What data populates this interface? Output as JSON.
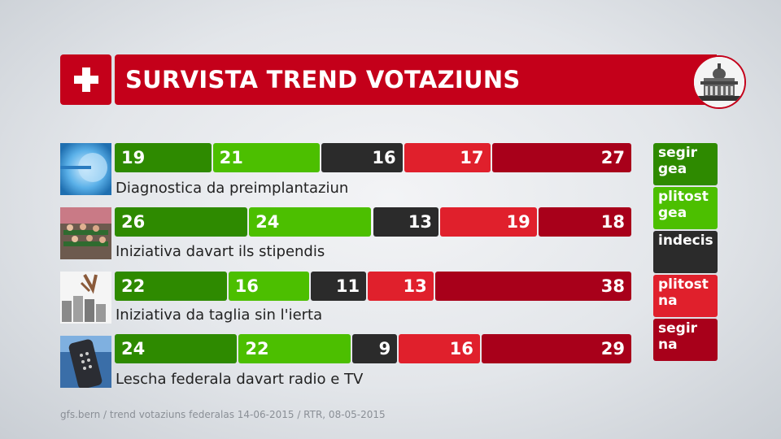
{
  "header": {
    "title": "SURVISTA TREND VOTAZIUNS"
  },
  "legend": [
    {
      "label": "segir gea",
      "color": "#2e8a00"
    },
    {
      "label": "plitost gea",
      "color": "#4cbf00"
    },
    {
      "label": "indecis",
      "color": "#2b2b2b"
    },
    {
      "label": "plitost na",
      "color": "#e0202c"
    },
    {
      "label": "segir na",
      "color": "#a8001a"
    }
  ],
  "chart_data": {
    "type": "bar",
    "stacked": true,
    "orientation": "horizontal",
    "title": "SURVISTA TREND VOTAZIUNS",
    "categories": [
      "Diagnostica da preimplantaziun",
      "Iniziativa davart ils stipendis",
      "Iniziativa da taglia sin l'ierta",
      "Lescha federala davart radio e TV"
    ],
    "series": [
      {
        "name": "segir gea",
        "color": "#2e8a00",
        "values": [
          19,
          26,
          22,
          24
        ]
      },
      {
        "name": "plitost gea",
        "color": "#4cbf00",
        "values": [
          21,
          24,
          16,
          22
        ]
      },
      {
        "name": "indecis",
        "color": "#2b2b2b",
        "values": [
          16,
          13,
          11,
          9
        ]
      },
      {
        "name": "plitost na",
        "color": "#e0202c",
        "values": [
          17,
          19,
          13,
          16
        ]
      },
      {
        "name": "segir na",
        "color": "#a8001a",
        "values": [
          27,
          18,
          38,
          29
        ]
      }
    ],
    "xlim": [
      0,
      100
    ],
    "legend": "right"
  },
  "footer": {
    "source": "gfs.bern / trend votaziuns federalas 14-06-2015 / RTR, 08-05-2015"
  },
  "icons": {
    "flag": "swiss-cross-icon",
    "parliament": "parliament-building-icon",
    "thumbs": [
      "embryo-cell-thumbnail",
      "students-lecture-thumbnail",
      "coins-stack-thumbnail",
      "tv-remote-thumbnail"
    ]
  }
}
